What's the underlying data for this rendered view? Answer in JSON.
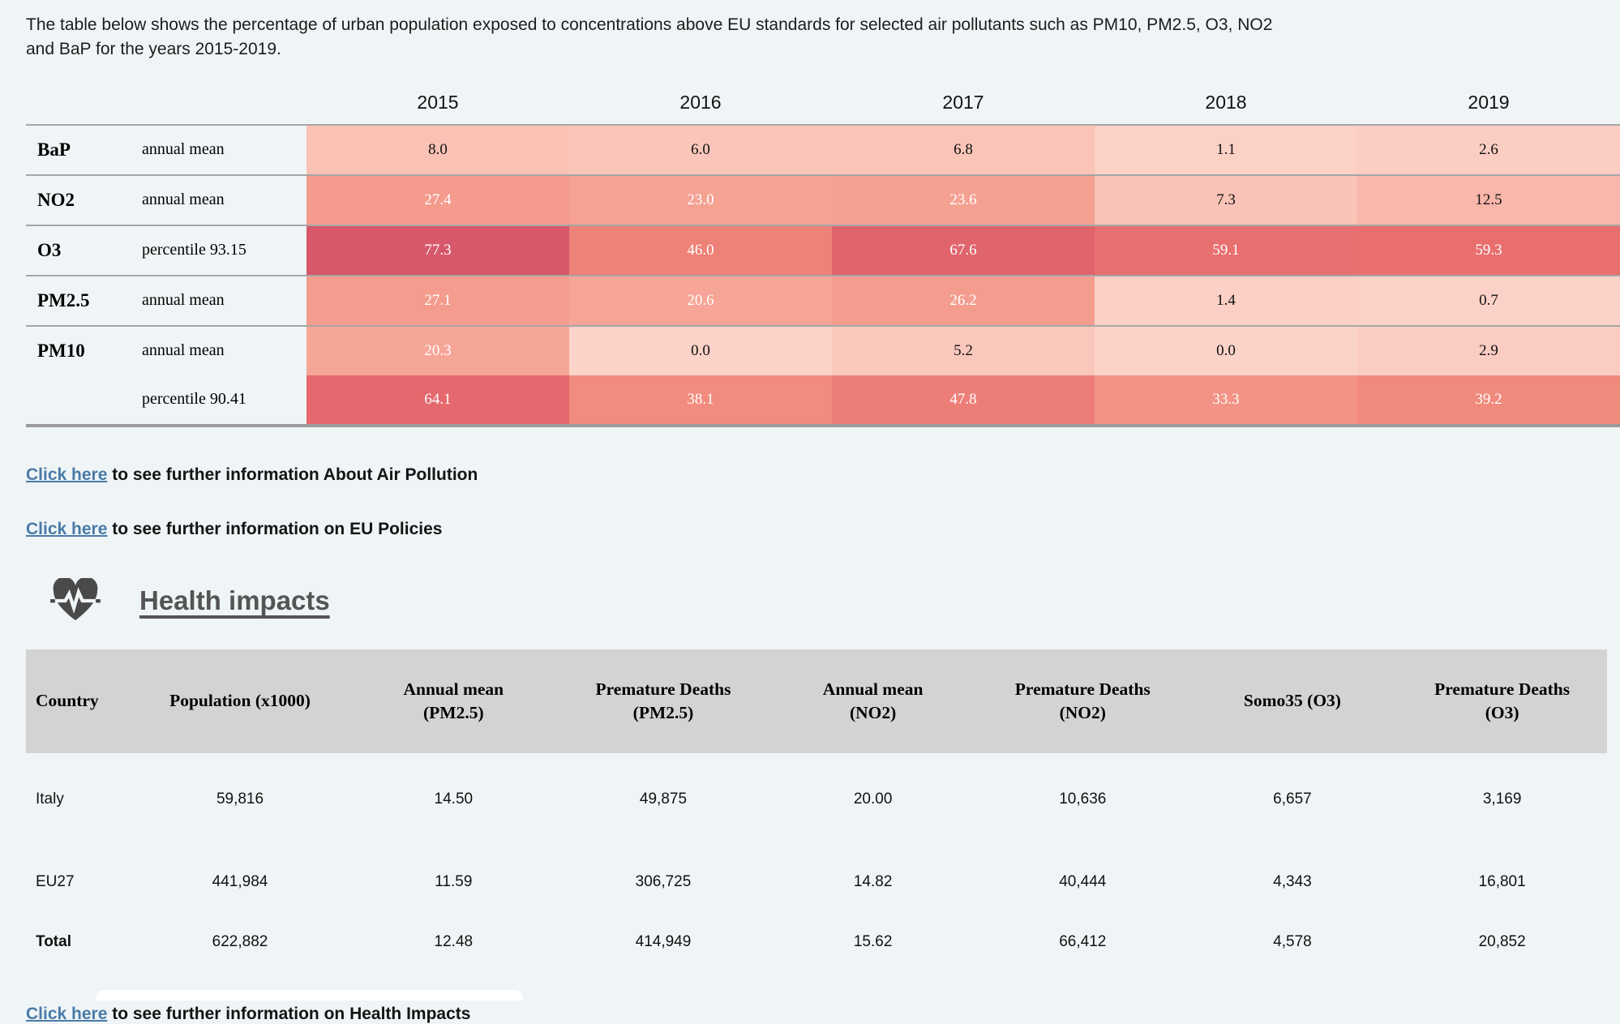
{
  "intro": {
    "text": "The table below shows the percentage of urban population exposed to concentrations above EU standards for selected air pollutants such as PM10, PM2.5, O3, NO2 and BaP for the years 2015-2019."
  },
  "exposure_table": {
    "years": [
      "2015",
      "2016",
      "2017",
      "2018",
      "2019"
    ],
    "rows": [
      {
        "pollutant": "BaP",
        "metric": "annual mean",
        "values": [
          "8.0",
          "6.0",
          "6.8",
          "1.1",
          "2.6"
        ],
        "merge_with_previous": false
      },
      {
        "pollutant": "NO2",
        "metric": "annual mean",
        "values": [
          "27.4",
          "23.0",
          "23.6",
          "7.3",
          "12.5"
        ],
        "merge_with_previous": false
      },
      {
        "pollutant": "O3",
        "metric": "percentile 93.15",
        "values": [
          "77.3",
          "46.0",
          "67.6",
          "59.1",
          "59.3"
        ],
        "merge_with_previous": false
      },
      {
        "pollutant": "PM2.5",
        "metric": "annual mean",
        "values": [
          "27.1",
          "20.6",
          "26.2",
          "1.4",
          "0.7"
        ],
        "merge_with_previous": false
      },
      {
        "pollutant": "PM10",
        "metric": "annual mean",
        "values": [
          "20.3",
          "0.0",
          "5.2",
          "0.0",
          "2.9"
        ],
        "merge_with_previous": false
      },
      {
        "pollutant": "",
        "metric": "percentile 90.41",
        "values": [
          "64.1",
          "38.1",
          "47.8",
          "33.3",
          "39.2"
        ],
        "merge_with_previous": true
      }
    ],
    "heatmap_stops": [
      [
        0,
        "#fcd3c9"
      ],
      [
        20,
        "#f6a697"
      ],
      [
        40,
        "#f0897c"
      ],
      [
        60,
        "#e86e6e"
      ],
      [
        80,
        "#d4536a"
      ]
    ],
    "white_text_threshold": 15,
    "dark_text_color": "#101010",
    "light_text_color": "#ffffff"
  },
  "links": {
    "air_pollution": {
      "link": "Click here",
      "rest": " to see further information About Air Pollution"
    },
    "eu_policies": {
      "link": "Click here",
      "rest": " to see further information on EU Policies"
    },
    "health_impacts": {
      "link": "Click here",
      "rest": " to see further information on Health Impacts"
    }
  },
  "health_section": {
    "icon": "heartbeat-icon",
    "icon_color": "#4a4a4a",
    "title": "Health impacts",
    "table": {
      "headers": [
        "Country",
        "Population (x1000)",
        "Annual mean\n(PM2.5)",
        "Premature Deaths\n(PM2.5)",
        "Annual mean\n(NO2)",
        "Premature Deaths\n(NO2)",
        "Somo35 (O3)",
        "Premature Deaths\n(O3)"
      ],
      "rows": [
        {
          "country": "Italy",
          "bold": false,
          "values": [
            "59,816",
            "14.50",
            "49,875",
            "20.00",
            "10,636",
            "6,657",
            "3,169"
          ]
        },
        {
          "country": "EU27",
          "bold": false,
          "values": [
            "441,984",
            "11.59",
            "306,725",
            "14.82",
            "40,444",
            "4,343",
            "16,801"
          ]
        },
        {
          "country": "Total",
          "bold": true,
          "values": [
            "622,882",
            "12.48",
            "414,949",
            "15.62",
            "66,412",
            "4,578",
            "20,852"
          ]
        }
      ]
    }
  },
  "colors": {
    "page_background": "#eff5f6",
    "link_blue": "#4a7aa8",
    "table_header_grey": "#d3d3d3",
    "separator_grey": "#a6a6a6",
    "heading_grey": "#555555"
  }
}
